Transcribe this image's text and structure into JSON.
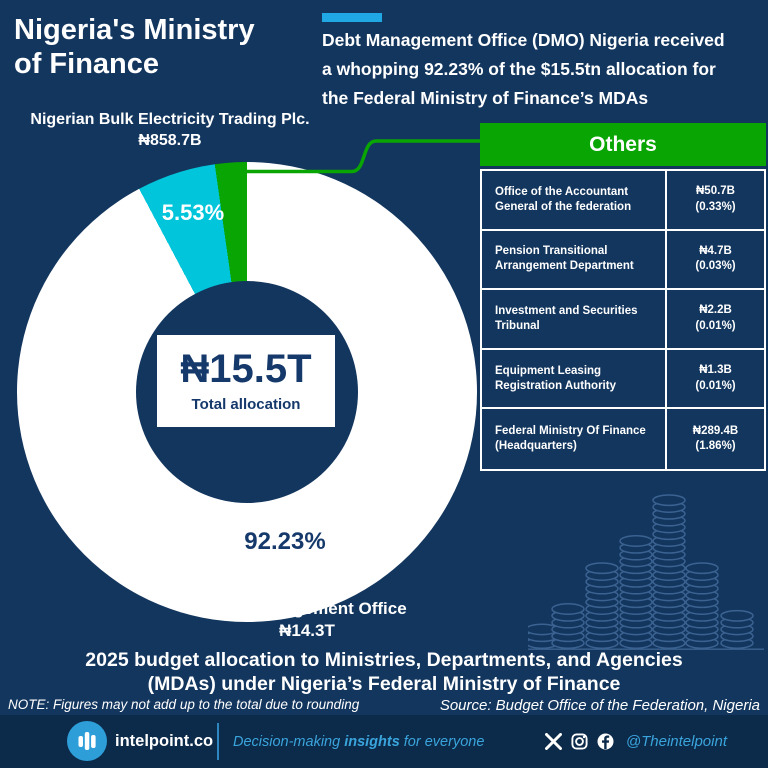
{
  "colors": {
    "background": "#13365E",
    "footer_bar": "#0C2A4A",
    "accent_lightblue": "#1FA8E4",
    "green": "#09A603",
    "cyan": "#00C5DB",
    "navy_text": "#15396B",
    "white": "#FFFFFF",
    "coin_outline": "#3B6291"
  },
  "header": {
    "title_lines": [
      "Nigeria's Ministry",
      "of Finance"
    ],
    "headline_lines": [
      "Debt Management Office (DMO) Nigeria received",
      "a whopping 92.23% of the $15.5tn allocation for",
      "the Federal Ministry of Finance’s MDAs"
    ]
  },
  "chart_data": {
    "type": "pie",
    "subtype": "donut",
    "title": "2025 budget allocation to Ministries, Departments, and Agencies (MDAs) under Nigeria’s Federal Ministry of Finance",
    "center": {
      "value": "₦15.5T",
      "label": "Total allocation"
    },
    "slices": [
      {
        "name": "Debt Management Office",
        "value_label": "₦14.3T",
        "percent": 92.23,
        "percent_label": "92.23%",
        "color": "#FFFFFF"
      },
      {
        "name": "Nigerian Bulk Electricity Trading Plc.",
        "value_label": "₦858.7B",
        "percent": 5.53,
        "percent_label": "5.53%",
        "color": "#00C5DB"
      },
      {
        "name": "Others",
        "value_label": "",
        "percent": 2.24,
        "percent_label": "",
        "color": "#09A603"
      }
    ],
    "legend_position": "callout-labels"
  },
  "others_table": {
    "header": "Others",
    "rows": [
      {
        "label": "Office of the Accountant General of the federation",
        "value": "₦50.7B",
        "pct": "(0.33%)"
      },
      {
        "label": "Pension Transitional Arrangement Department",
        "value": "₦4.7B",
        "pct": "(0.03%)"
      },
      {
        "label": "Investment and Securities Tribunal",
        "value": "₦2.2B",
        "pct": "(0.01%)"
      },
      {
        "label": "Equipment Leasing Registration Authority",
        "value": "₦1.3B",
        "pct": "(0.01%)"
      },
      {
        "label": "Federal Ministry Of Finance (Headquarters)",
        "value": "₦289.4B",
        "pct": "(1.86%)"
      }
    ]
  },
  "bottom": {
    "caption_lines": [
      "2025 budget allocation to Ministries, Departments, and Agencies",
      "(MDAs) under Nigeria’s Federal Ministry of Finance"
    ],
    "note": "NOTE: Figures may not add up to the total due to rounding",
    "source": "Source: Budget Office of the Federation, Nigeria"
  },
  "brandbar": {
    "brand": "intelpoint.co",
    "tagline_pre": "Decision-making",
    "tagline_bold": "insights",
    "tagline_post": "for everyone",
    "handle": "@Theintelpoint",
    "icons": [
      "bar-chart-logo-icon",
      "x-icon",
      "instagram-icon",
      "facebook-icon"
    ]
  }
}
